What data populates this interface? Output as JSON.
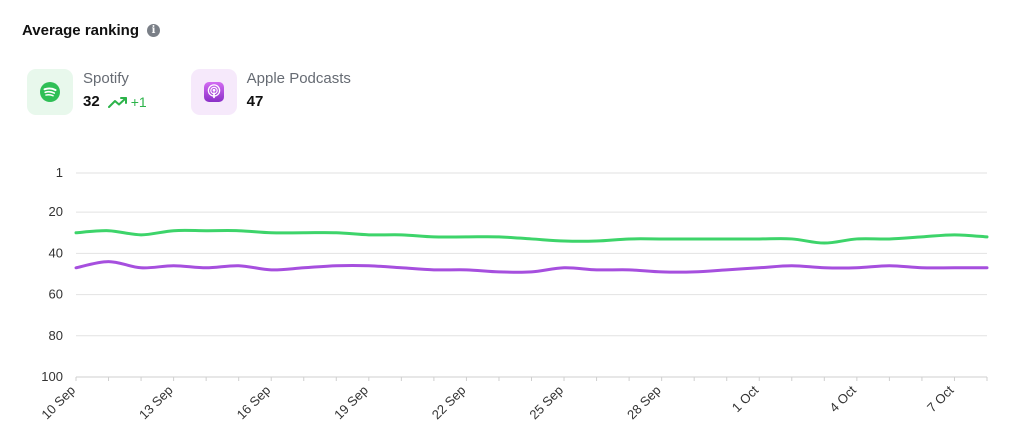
{
  "header": {
    "title": "Average ranking",
    "info_icon": "info-icon"
  },
  "platforms": [
    {
      "name": "Spotify",
      "value": "32",
      "change": "+1",
      "trend_icon": "trend-up-icon",
      "color": "#3dd46a",
      "badge_color": "#e8f8ec",
      "icon": "spotify-icon"
    },
    {
      "name": "Apple Podcasts",
      "value": "47",
      "color": "#a64fde",
      "badge_color": "#f6e9fb",
      "icon": "apple-podcasts-icon"
    }
  ],
  "colors": {
    "positive": "#2cb34a",
    "grid": "#e2e2e2",
    "axis_text": "#333333"
  },
  "chart_data": {
    "type": "line",
    "y_inverted": true,
    "ylim": [
      1,
      100
    ],
    "y_ticks": [
      "1",
      "20",
      "40",
      "60",
      "80",
      "100"
    ],
    "y_tick_values": [
      1,
      20,
      40,
      60,
      80,
      100
    ],
    "x_tick_labels": [
      "10 Sep",
      "13 Sep",
      "16 Sep",
      "19 Sep",
      "22 Sep",
      "25 Sep",
      "28 Sep",
      "1 Oct",
      "4 Oct",
      "7 Oct"
    ],
    "x_tick_index": [
      0,
      3,
      6,
      9,
      12,
      15,
      18,
      21,
      24,
      27
    ],
    "x": [
      "10 Sep",
      "11 Sep",
      "12 Sep",
      "13 Sep",
      "14 Sep",
      "15 Sep",
      "16 Sep",
      "17 Sep",
      "18 Sep",
      "19 Sep",
      "20 Sep",
      "21 Sep",
      "22 Sep",
      "23 Sep",
      "24 Sep",
      "25 Sep",
      "26 Sep",
      "27 Sep",
      "28 Sep",
      "29 Sep",
      "30 Sep",
      "1 Oct",
      "2 Oct",
      "3 Oct",
      "4 Oct",
      "5 Oct",
      "6 Oct",
      "7 Oct",
      "8 Oct"
    ],
    "series": [
      {
        "name": "Spotify",
        "color": "#3dd46a",
        "values": [
          30,
          29,
          31,
          29,
          29,
          29,
          30,
          30,
          30,
          31,
          31,
          32,
          32,
          32,
          33,
          34,
          34,
          33,
          33,
          33,
          33,
          33,
          33,
          35,
          33,
          33,
          32,
          31,
          32
        ]
      },
      {
        "name": "Apple Podcasts",
        "color": "#a64fde",
        "values": [
          47,
          44,
          47,
          46,
          47,
          46,
          48,
          47,
          46,
          46,
          47,
          48,
          48,
          49,
          49,
          47,
          48,
          48,
          49,
          49,
          48,
          47,
          46,
          47,
          47,
          46,
          47,
          47,
          47
        ]
      }
    ]
  }
}
